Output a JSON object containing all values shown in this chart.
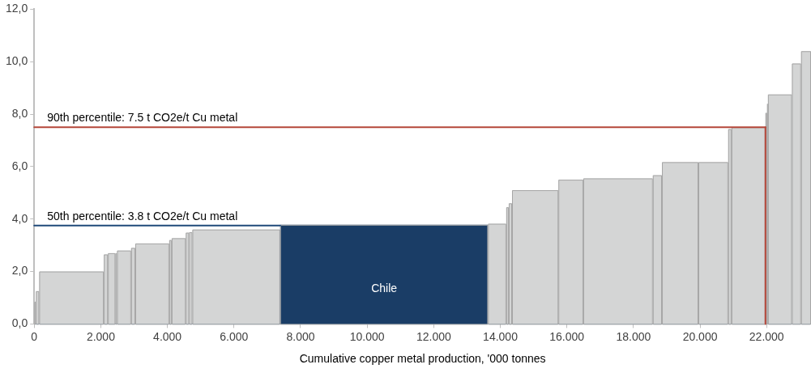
{
  "chart_data": {
    "type": "histogram",
    "xlabel": "Cumulative copper metal production, '000 tonnes",
    "bins": [
      0,
      50,
      150,
      2090,
      2214,
      2438,
      2488,
      2910,
      3035,
      4055,
      4129,
      4552,
      4652,
      4751,
      7388,
      13632,
      14179,
      14254,
      14353,
      15746,
      16493,
      18582,
      18856,
      19950,
      20846,
      20945,
      21965,
      22015,
      22040,
      22761,
      23035,
      23333
    ],
    "values": [
      0.85,
      1.25,
      2.0,
      2.65,
      2.7,
      2.7,
      2.8,
      2.9,
      3.07,
      3.2,
      3.27,
      3.48,
      3.5,
      3.6,
      3.78,
      3.82,
      4.45,
      4.6,
      5.1,
      5.5,
      5.55,
      5.67,
      6.17,
      6.17,
      7.43,
      7.5,
      8.05,
      8.4,
      8.75,
      9.93,
      10.4
    ],
    "colors": [
      "#d4d5d5",
      "#d4d5d5",
      "#d4d5d5",
      "#d4d5d5",
      "#d4d5d5",
      "#d4d5d5",
      "#d4d5d5",
      "#d4d5d5",
      "#d4d5d5",
      "#d4d5d5",
      "#d4d5d5",
      "#d4d5d5",
      "#d4d5d5",
      "#d4d5d5",
      "#1a3d66",
      "#d4d5d5",
      "#d4d5d5",
      "#d4d5d5",
      "#d4d5d5",
      "#d4d5d5",
      "#d4d5d5",
      "#d4d5d5",
      "#d4d5d5",
      "#d4d5d5",
      "#d4d5d5",
      "#d4d5d5",
      "#d4d5d5",
      "#d4d5d5",
      "#d4d5d5",
      "#d4d5d5",
      "#d4d5d5"
    ],
    "xlim": [
      0,
      23333
    ],
    "xticks": [
      0,
      {
        "value": 2000,
        "label": "2.000"
      },
      {
        "value": 4000,
        "label": "4.000"
      },
      {
        "value": 6000,
        "label": "6.000"
      },
      {
        "value": 8000,
        "label": "8.000"
      },
      {
        "value": 10000,
        "label": "10.000"
      },
      {
        "value": 12000,
        "label": "12.000"
      },
      {
        "value": 14000,
        "label": "14.000"
      },
      {
        "value": 16000,
        "label": "16.000"
      },
      {
        "value": 18000,
        "label": "18.000"
      },
      {
        "value": 20000,
        "label": "20.000"
      },
      {
        "value": 22000,
        "label": "22.000"
      }
    ],
    "ylim": [
      0,
      12
    ],
    "yticks": [
      {
        "value": 0,
        "label": "0,0"
      },
      {
        "value": 2,
        "label": "2,0"
      },
      {
        "value": 4,
        "label": "4,0"
      },
      {
        "value": 6,
        "label": "6,0"
      },
      {
        "value": 8,
        "label": "8,0"
      },
      {
        "value": 10,
        "label": "10,0"
      },
      {
        "value": 12,
        "label": "12,0"
      }
    ],
    "ref_lines": [
      {
        "axis": "y",
        "value": 7.5,
        "label": "90th percentile: 7.5 t CO2e/t Cu metal",
        "color": "#b5473a"
      },
      {
        "axis": "y",
        "value": 3.75,
        "label": "50th percentile: 3.8 t CO2e/t Cu metal",
        "color": "#1f4a7a"
      },
      {
        "axis": "x",
        "value": 21965,
        "label": null,
        "color": "#b5473a"
      }
    ],
    "annotations": [
      "Chile"
    ],
    "grid": false,
    "legend": false
  }
}
